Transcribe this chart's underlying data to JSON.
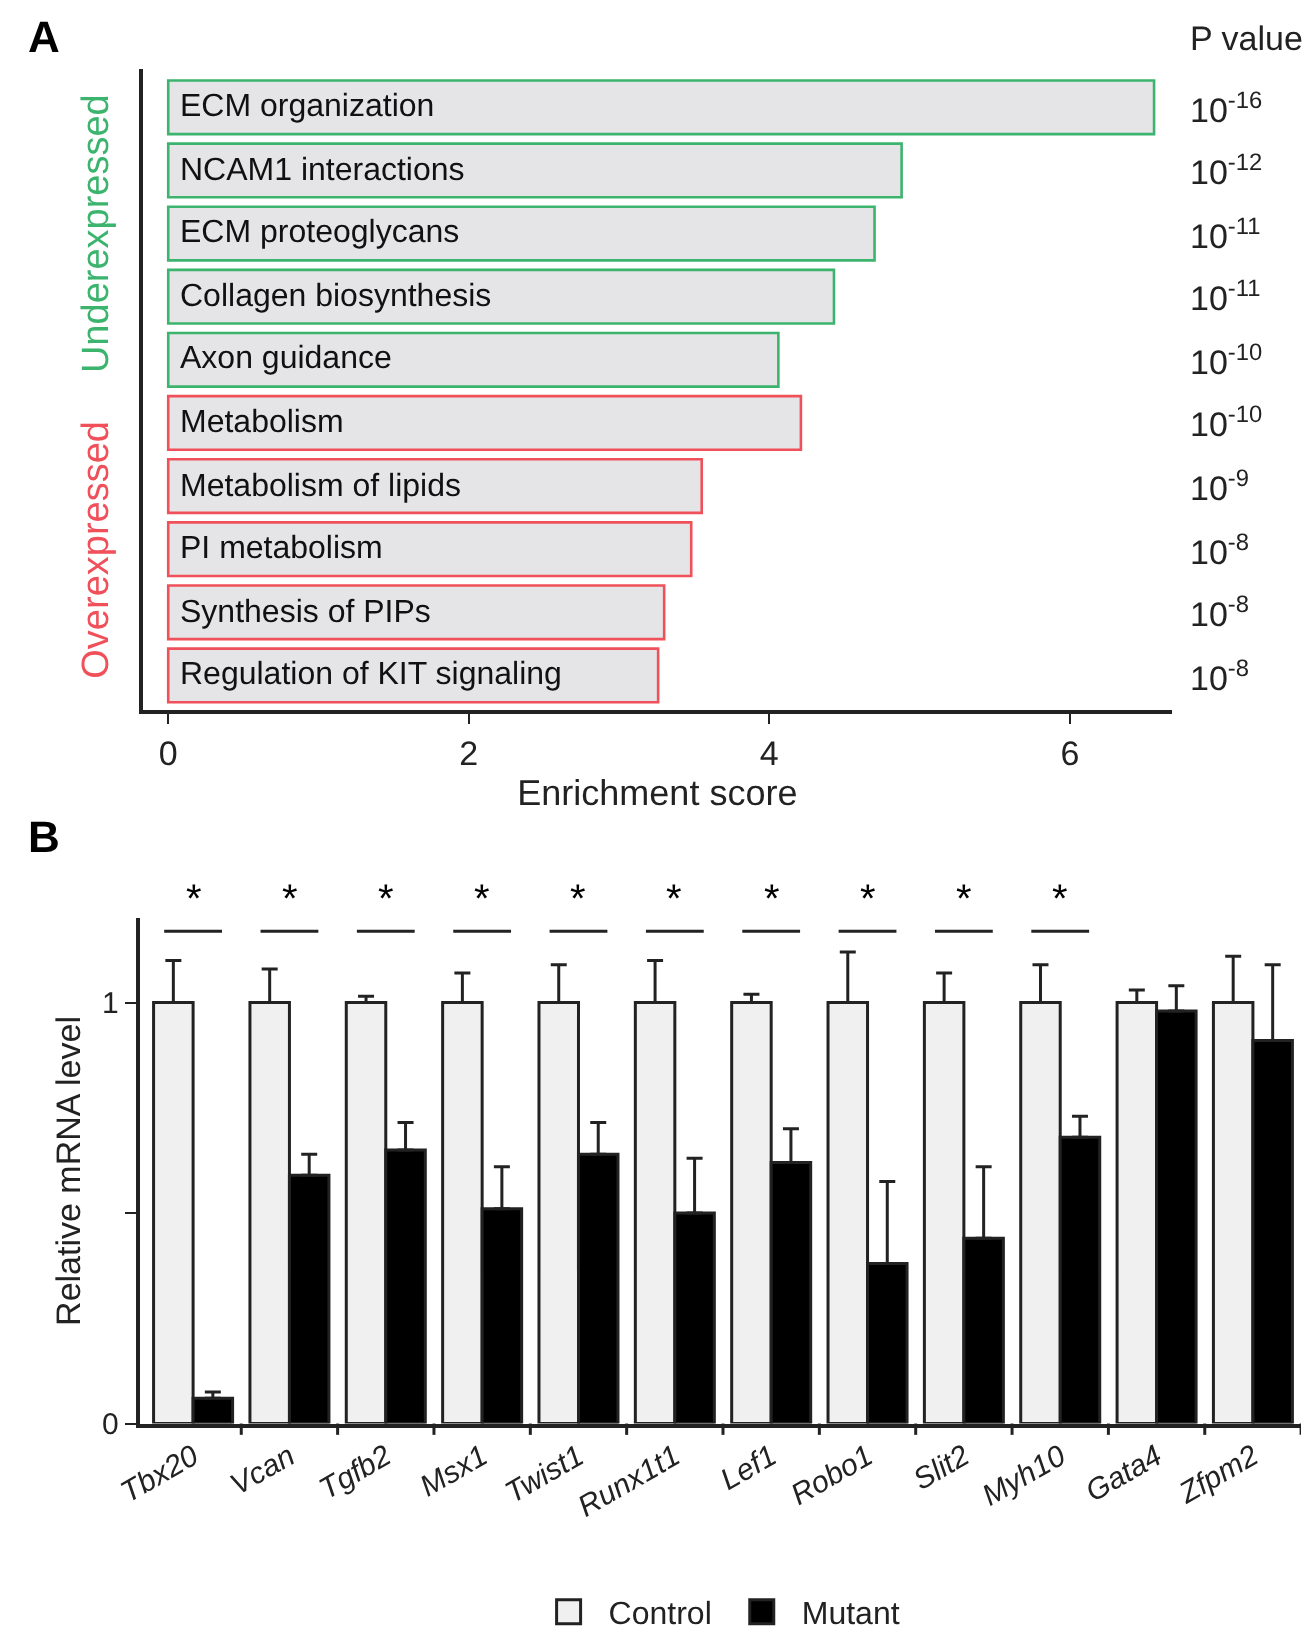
{
  "chart_data": [
    {
      "type": "bar",
      "title": "A",
      "orientation": "horizontal",
      "xlabel": "Enrichment score",
      "legend_title": "P value",
      "categories": [
        "ECM organization",
        "NCAM1 interactions",
        "ECM proteoglycans",
        "Collagen biosynthesis",
        "Axon guidance",
        "Metabolism",
        "Metabolism of lipids",
        "PI metabolism",
        "Synthesis of PIPs",
        "Regulation of KIT signaling"
      ],
      "series": [
        {
          "name": "Underexpressed",
          "color": "#3cb46e",
          "values": [
            6.56,
            4.88,
            4.7,
            4.43,
            4.06,
            null,
            null,
            null,
            null,
            null
          ]
        },
        {
          "name": "Overexpressed",
          "color": "#f0505a",
          "values": [
            null,
            null,
            null,
            null,
            null,
            4.21,
            3.55,
            3.48,
            3.3,
            3.26
          ]
        }
      ],
      "annotations": [
        "10$^{-16}$",
        "10$^{-12}$",
        "10$^{-11}$",
        "10$^{-11}$",
        "10$^{-10}$",
        "10$^{-10}$",
        "10$^{-9}$",
        "10$^{-8}$",
        "10$^{-8}$",
        "10$^{-8}$"
      ],
      "xlim": [
        -0.17,
        6.68
      ],
      "xticks": [
        0,
        2,
        4,
        6
      ]
    },
    {
      "type": "bar",
      "title": "B",
      "ylabel": "Relative mRNA level",
      "categories": [
        "Tbx20",
        "Vcan",
        "Tgfb2",
        "Msx1",
        "Twist1",
        "Runx1t1",
        "Lef1",
        "Robo1",
        "Slit2",
        "Myh10",
        "Gata4",
        "Zfpm2"
      ],
      "series": [
        {
          "name": "Control",
          "color": "#f0f0f0",
          "values": [
            1,
            1,
            1,
            1,
            1,
            1,
            1,
            1,
            1,
            1,
            1,
            1
          ],
          "errors": [
            [
              1,
              1.1
            ],
            [
              1,
              1.08
            ],
            [
              1,
              1.015
            ],
            [
              1,
              1.07
            ],
            [
              1,
              1.09
            ],
            [
              1,
              1.1
            ],
            [
              1,
              1.02
            ],
            [
              1,
              1.12
            ],
            [
              1,
              1.07
            ],
            [
              1,
              1.09
            ],
            [
              1,
              1.03
            ],
            [
              1,
              1.11
            ]
          ]
        },
        {
          "name": "Mutant",
          "color": "#000000",
          "values": [
            0.06,
            0.59,
            0.65,
            0.51,
            0.64,
            0.5,
            0.62,
            0.38,
            0.44,
            0.68,
            0.98,
            0.91
          ],
          "errors": [
            [
              0.06,
              0.075
            ],
            [
              0.59,
              0.64
            ],
            [
              0.65,
              0.715
            ],
            [
              0.51,
              0.61
            ],
            [
              0.64,
              0.715
            ],
            [
              0.5,
              0.63
            ],
            [
              0.62,
              0.7
            ],
            [
              0.38,
              0.575
            ],
            [
              0.44,
              0.61
            ],
            [
              0.68,
              0.73
            ],
            [
              0.98,
              1.04
            ],
            [
              0.91,
              1.09
            ]
          ]
        }
      ],
      "annotations": [
        "*",
        "*",
        "*",
        "*",
        "*",
        "*",
        "*",
        "*",
        "*",
        "*"
      ],
      "ylim": [
        0,
        1.2
      ],
      "yticks": [
        0,
        {
          "value": 0.5,
          "label": null
        },
        1
      ],
      "legend": "bottom"
    }
  ]
}
